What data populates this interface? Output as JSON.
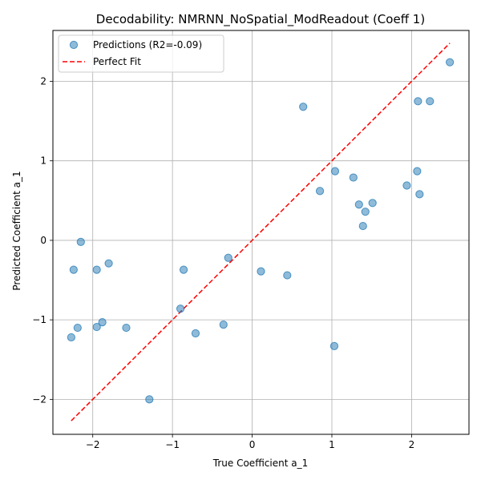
{
  "chart_data": {
    "type": "scatter",
    "title": "Decodability: NMRNN_NoSpatial_ModReadout (Coeff 1)",
    "xlabel": "True Coefficient a_1",
    "ylabel": "Predicted Coefficient a_1",
    "xlim": [
      -2.5,
      2.72
    ],
    "ylim": [
      -2.44,
      2.64
    ],
    "xticks": [
      -2,
      -1,
      0,
      1,
      2
    ],
    "yticks": [
      -2,
      -1,
      0,
      1,
      2
    ],
    "xtick_labels": [
      "−2",
      "−1",
      "0",
      "1",
      "2"
    ],
    "ytick_labels": [
      "−2",
      "−1",
      "0",
      "1",
      "2"
    ],
    "grid": true,
    "legend_position": "upper-left",
    "series": [
      {
        "name": "Predictions (R2=-0.09)",
        "kind": "scatter",
        "color": "#1f77b4",
        "opacity": 0.5,
        "points": [
          [
            -2.27,
            -1.22
          ],
          [
            -2.24,
            -0.37
          ],
          [
            -2.19,
            -1.1
          ],
          [
            -2.15,
            -0.02
          ],
          [
            -1.95,
            -0.37
          ],
          [
            -1.95,
            -1.09
          ],
          [
            -1.88,
            -1.03
          ],
          [
            -1.8,
            -0.29
          ],
          [
            -1.58,
            -1.1
          ],
          [
            -1.29,
            -2.0
          ],
          [
            -0.9,
            -0.86
          ],
          [
            -0.86,
            -0.37
          ],
          [
            -0.71,
            -1.17
          ],
          [
            -0.36,
            -1.06
          ],
          [
            -0.3,
            -0.22
          ],
          [
            0.11,
            -0.39
          ],
          [
            0.44,
            -0.44
          ],
          [
            0.64,
            1.68
          ],
          [
            0.85,
            0.62
          ],
          [
            1.03,
            -1.33
          ],
          [
            1.04,
            0.87
          ],
          [
            1.27,
            0.79
          ],
          [
            1.34,
            0.45
          ],
          [
            1.39,
            0.18
          ],
          [
            1.42,
            0.36
          ],
          [
            1.51,
            0.47
          ],
          [
            1.94,
            0.69
          ],
          [
            2.07,
            0.87
          ],
          [
            2.08,
            1.75
          ],
          [
            2.1,
            0.58
          ],
          [
            2.23,
            1.75
          ],
          [
            2.48,
            2.24
          ]
        ]
      },
      {
        "name": "Perfect Fit",
        "kind": "line",
        "color": "#ff0000",
        "dash": "dashed",
        "points": [
          [
            -2.27,
            -2.27
          ],
          [
            2.48,
            2.48
          ]
        ]
      }
    ]
  }
}
